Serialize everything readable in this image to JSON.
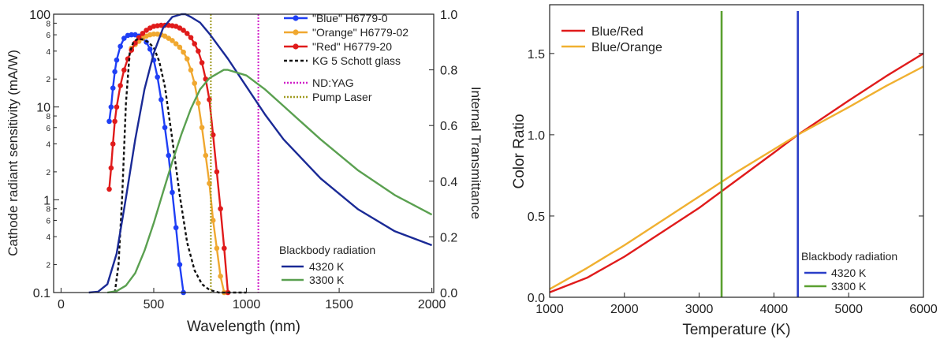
{
  "chart_data": [
    {
      "type": "line",
      "xlabel": "Wavelength (nm)",
      "ylabel_left": "Cathode radiant sensitivity (mA/W)",
      "ylabel_right": "Internal Transmittance",
      "xlim": [
        -40,
        2010
      ],
      "ylim_left": [
        0.1,
        100
      ],
      "yscale_left": "log",
      "ylim_right": [
        0,
        1.0
      ],
      "grid": false,
      "x_ticks": [
        0,
        500,
        1000,
        1500,
        2000
      ],
      "y_left_major_ticks": [
        {
          "value": 0.1,
          "label": "0.1"
        },
        {
          "value": 1,
          "label": "1"
        },
        {
          "value": 10,
          "label": "10"
        },
        {
          "value": 100,
          "label": "100"
        }
      ],
      "y_left_minor_ticks": [
        {
          "value": 0.2,
          "label": "2"
        },
        {
          "value": 0.4,
          "label": "4"
        },
        {
          "value": 0.6,
          "label": "6"
        },
        {
          "value": 0.8,
          "label": "8"
        },
        {
          "value": 2,
          "label": "2"
        },
        {
          "value": 4,
          "label": "4"
        },
        {
          "value": 6,
          "label": "6"
        },
        {
          "value": 8,
          "label": "8"
        },
        {
          "value": 20,
          "label": "2"
        },
        {
          "value": 40,
          "label": "4"
        },
        {
          "value": 60,
          "label": "6"
        },
        {
          "value": 80,
          "label": "8"
        }
      ],
      "y_right_ticks": [
        "0.0",
        "0.2",
        "0.4",
        "0.6",
        "0.8",
        "1.0"
      ],
      "legend_placement": "top-right",
      "series": [
        {
          "name": "\"Blue\" H6779-0",
          "axis": "left",
          "color": "#1f3ff5",
          "marker": "circle",
          "x": [
            260,
            270,
            280,
            290,
            300,
            320,
            340,
            360,
            380,
            400,
            420,
            440,
            460,
            480,
            500,
            520,
            540,
            560,
            580,
            600,
            620,
            640,
            660
          ],
          "y": [
            7,
            10,
            16,
            24,
            32,
            45,
            55,
            59,
            60,
            60,
            58,
            55,
            50,
            42,
            32,
            21,
            12,
            6,
            3,
            1.2,
            0.5,
            0.2,
            0.1
          ]
        },
        {
          "name": "\"Orange\" H6779-02",
          "axis": "left",
          "color": "#f0a830",
          "marker": "circle",
          "x": [
            380,
            400,
            420,
            440,
            460,
            480,
            500,
            520,
            540,
            560,
            580,
            600,
            620,
            640,
            660,
            680,
            700,
            720,
            740,
            760,
            780,
            800,
            820,
            840,
            860,
            880
          ],
          "y": [
            43,
            47,
            51,
            55,
            58,
            60,
            61,
            61,
            60,
            58,
            55,
            52,
            48,
            44,
            39,
            33,
            25,
            18,
            11,
            6,
            3,
            1.5,
            0.6,
            0.3,
            0.15,
            0.1
          ]
        },
        {
          "name": "\"Red\" H6779-20",
          "axis": "left",
          "color": "#e01b1b",
          "marker": "circle",
          "x": [
            260,
            270,
            280,
            290,
            300,
            320,
            340,
            360,
            380,
            400,
            420,
            440,
            460,
            480,
            500,
            520,
            540,
            560,
            580,
            600,
            620,
            640,
            660,
            680,
            700,
            720,
            740,
            760,
            780,
            800,
            820,
            840,
            860,
            880,
            900
          ],
          "y": [
            1.3,
            2.2,
            4,
            7,
            10,
            17,
            25,
            33,
            41,
            49,
            56,
            62,
            67,
            71,
            74,
            75,
            76,
            76,
            76,
            75,
            74,
            71,
            67,
            62,
            56,
            48,
            40,
            30,
            20,
            12,
            5,
            2,
            0.8,
            0.3,
            0.1
          ]
        },
        {
          "name": "KG 5 Schott glass",
          "axis": "right",
          "color": "#111111",
          "dash": "4,3",
          "x": [
            290,
            310,
            330,
            350,
            370,
            390,
            410,
            440,
            470,
            500,
            530,
            560,
            600,
            640,
            680,
            720,
            760,
            800,
            850,
            900,
            1000
          ],
          "y": [
            0.0,
            0.1,
            0.35,
            0.68,
            0.86,
            0.9,
            0.91,
            0.91,
            0.9,
            0.88,
            0.83,
            0.74,
            0.55,
            0.35,
            0.18,
            0.08,
            0.03,
            0.01,
            0.0,
            0.0,
            0.0
          ]
        },
        {
          "name": "ND:YAG",
          "axis": "vertical-line",
          "color": "#d020c8",
          "dash": "2,2",
          "x": 1064
        },
        {
          "name": "Pump Laser",
          "axis": "vertical-line",
          "color": "#a09a20",
          "dash": "2,2",
          "x": 808
        },
        {
          "name": "4320 K",
          "axis": "right",
          "color": "#1a2a96",
          "legend_group": "Blackbody radiation",
          "x": [
            150,
            200,
            250,
            300,
            350,
            400,
            450,
            500,
            550,
            600,
            650,
            671,
            700,
            750,
            800,
            900,
            1000,
            1100,
            1200,
            1400,
            1600,
            1800,
            2000
          ],
          "y": [
            0.0,
            0.003,
            0.03,
            0.14,
            0.34,
            0.55,
            0.73,
            0.86,
            0.95,
            0.99,
            1.0,
            1.0,
            0.99,
            0.97,
            0.93,
            0.84,
            0.74,
            0.64,
            0.55,
            0.41,
            0.3,
            0.22,
            0.17
          ]
        },
        {
          "name": "3300 K",
          "axis": "right",
          "color": "#5aa050",
          "legend_group": "Blackbody radiation",
          "x": [
            250,
            300,
            350,
            400,
            450,
            500,
            550,
            600,
            650,
            700,
            750,
            800,
            878,
            900,
            1000,
            1100,
            1200,
            1300,
            1400,
            1600,
            1800,
            2000
          ],
          "y": [
            0.0,
            0.005,
            0.025,
            0.07,
            0.15,
            0.25,
            0.36,
            0.47,
            0.57,
            0.66,
            0.73,
            0.77,
            0.8,
            0.8,
            0.78,
            0.73,
            0.67,
            0.61,
            0.55,
            0.44,
            0.35,
            0.28
          ]
        }
      ],
      "legend_heading": "Blackbody radiation"
    },
    {
      "type": "line",
      "xlabel": "Temperature (K)",
      "ylabel": "Color Ratio",
      "xlim": [
        1000,
        6000
      ],
      "ylim": [
        0.0,
        1.8
      ],
      "grid": false,
      "x_ticks": [
        "1000",
        "2000",
        "3000",
        "4000",
        "5000",
        "6000"
      ],
      "y_ticks": [
        "0.0",
        "0.5",
        "1.0",
        "1.5"
      ],
      "legend_placement": "top-left",
      "legend_heading": "Blackbody radiation",
      "series": [
        {
          "name": "Blue/Red",
          "color": "#e01b1b",
          "x": [
            1000,
            1500,
            2000,
            2500,
            3000,
            3500,
            4000,
            4320,
            5000,
            5500,
            6000
          ],
          "y": [
            0.03,
            0.12,
            0.25,
            0.4,
            0.55,
            0.72,
            0.89,
            1.0,
            1.21,
            1.36,
            1.5
          ]
        },
        {
          "name": "Blue/Orange",
          "color": "#f0b030",
          "x": [
            1000,
            1500,
            2000,
            2500,
            3000,
            3500,
            4000,
            4320,
            5000,
            5500,
            6000
          ],
          "y": [
            0.05,
            0.18,
            0.32,
            0.47,
            0.62,
            0.77,
            0.91,
            1.0,
            1.17,
            1.3,
            1.42
          ]
        },
        {
          "name": "4320 K",
          "axis": "vertical-line",
          "color": "#2a3ec8",
          "x": 4320
        },
        {
          "name": "3300 K",
          "axis": "vertical-line",
          "color": "#5aa030",
          "x": 3300
        }
      ]
    }
  ]
}
